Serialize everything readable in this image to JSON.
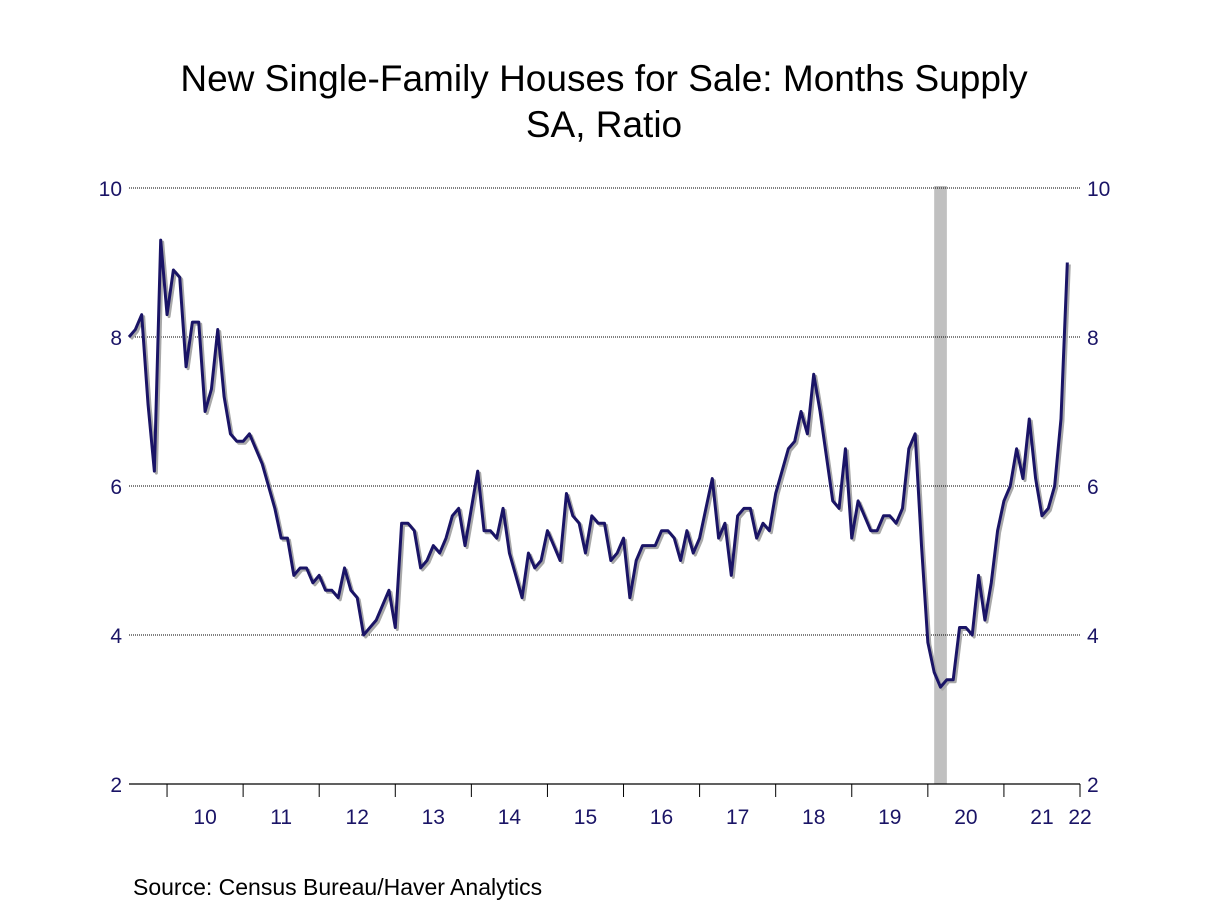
{
  "chart_data": {
    "type": "line",
    "title": "New Single-Family Houses for Sale: Months Supply",
    "subtitle": "SA, Ratio",
    "source": "Source:  Census Bureau/Haver Analytics",
    "ylim": [
      2,
      10
    ],
    "yticks": [
      "2",
      "4",
      "6",
      "8",
      "10"
    ],
    "xticks": [
      "10",
      "11",
      "12",
      "13",
      "14",
      "15",
      "16",
      "17",
      "18",
      "19",
      "20",
      "21",
      "22"
    ],
    "grid": true,
    "recession_shading": {
      "start": "2020-02",
      "end": "2020-04"
    },
    "colors": {
      "line": "#1a1466",
      "shadow": "#a8a8a8",
      "recession": "#c0c0c0",
      "axis_text": "#1a1466"
    },
    "series": [
      {
        "start": "2009-07",
        "frequency": "monthly",
        "values": [
          8.0,
          8.1,
          8.3,
          7.1,
          6.2,
          9.3,
          8.3,
          8.9,
          8.8,
          7.6,
          8.2,
          8.2,
          7.0,
          7.3,
          8.1,
          7.2,
          6.7,
          6.6,
          6.6,
          6.7,
          6.5,
          6.3,
          6.0,
          5.7,
          5.3,
          5.3,
          4.8,
          4.9,
          4.9,
          4.7,
          4.8,
          4.6,
          4.6,
          4.5,
          4.9,
          4.6,
          4.5,
          4.0,
          4.1,
          4.2,
          4.4,
          4.6,
          4.1,
          5.5,
          5.5,
          5.4,
          4.9,
          5.0,
          5.2,
          5.1,
          5.3,
          5.6,
          5.7,
          5.2,
          5.7,
          6.2,
          5.4,
          5.4,
          5.3,
          5.7,
          5.1,
          4.8,
          4.5,
          5.1,
          4.9,
          5.0,
          5.4,
          5.2,
          5.0,
          5.9,
          5.6,
          5.5,
          5.1,
          5.6,
          5.5,
          5.5,
          5.0,
          5.1,
          5.3,
          4.5,
          5.0,
          5.2,
          5.2,
          5.2,
          5.4,
          5.4,
          5.3,
          5.0,
          5.4,
          5.1,
          5.3,
          5.7,
          6.1,
          5.3,
          5.5,
          4.8,
          5.6,
          5.7,
          5.7,
          5.3,
          5.5,
          5.4,
          5.9,
          6.2,
          6.5,
          6.6,
          7.0,
          6.7,
          7.5,
          7.0,
          6.4,
          5.8,
          5.7,
          6.5,
          5.3,
          5.8,
          5.6,
          5.4,
          5.4,
          5.6,
          5.6,
          5.5,
          5.7,
          6.5,
          6.7,
          5.2,
          3.9,
          3.5,
          3.3,
          3.4,
          3.4,
          4.1,
          4.1,
          4.0,
          4.8,
          4.2,
          4.7,
          5.4,
          5.8,
          6.0,
          6.5,
          6.1,
          6.9,
          6.1,
          5.6,
          5.7,
          6.0,
          6.9,
          9.0
        ]
      }
    ]
  }
}
